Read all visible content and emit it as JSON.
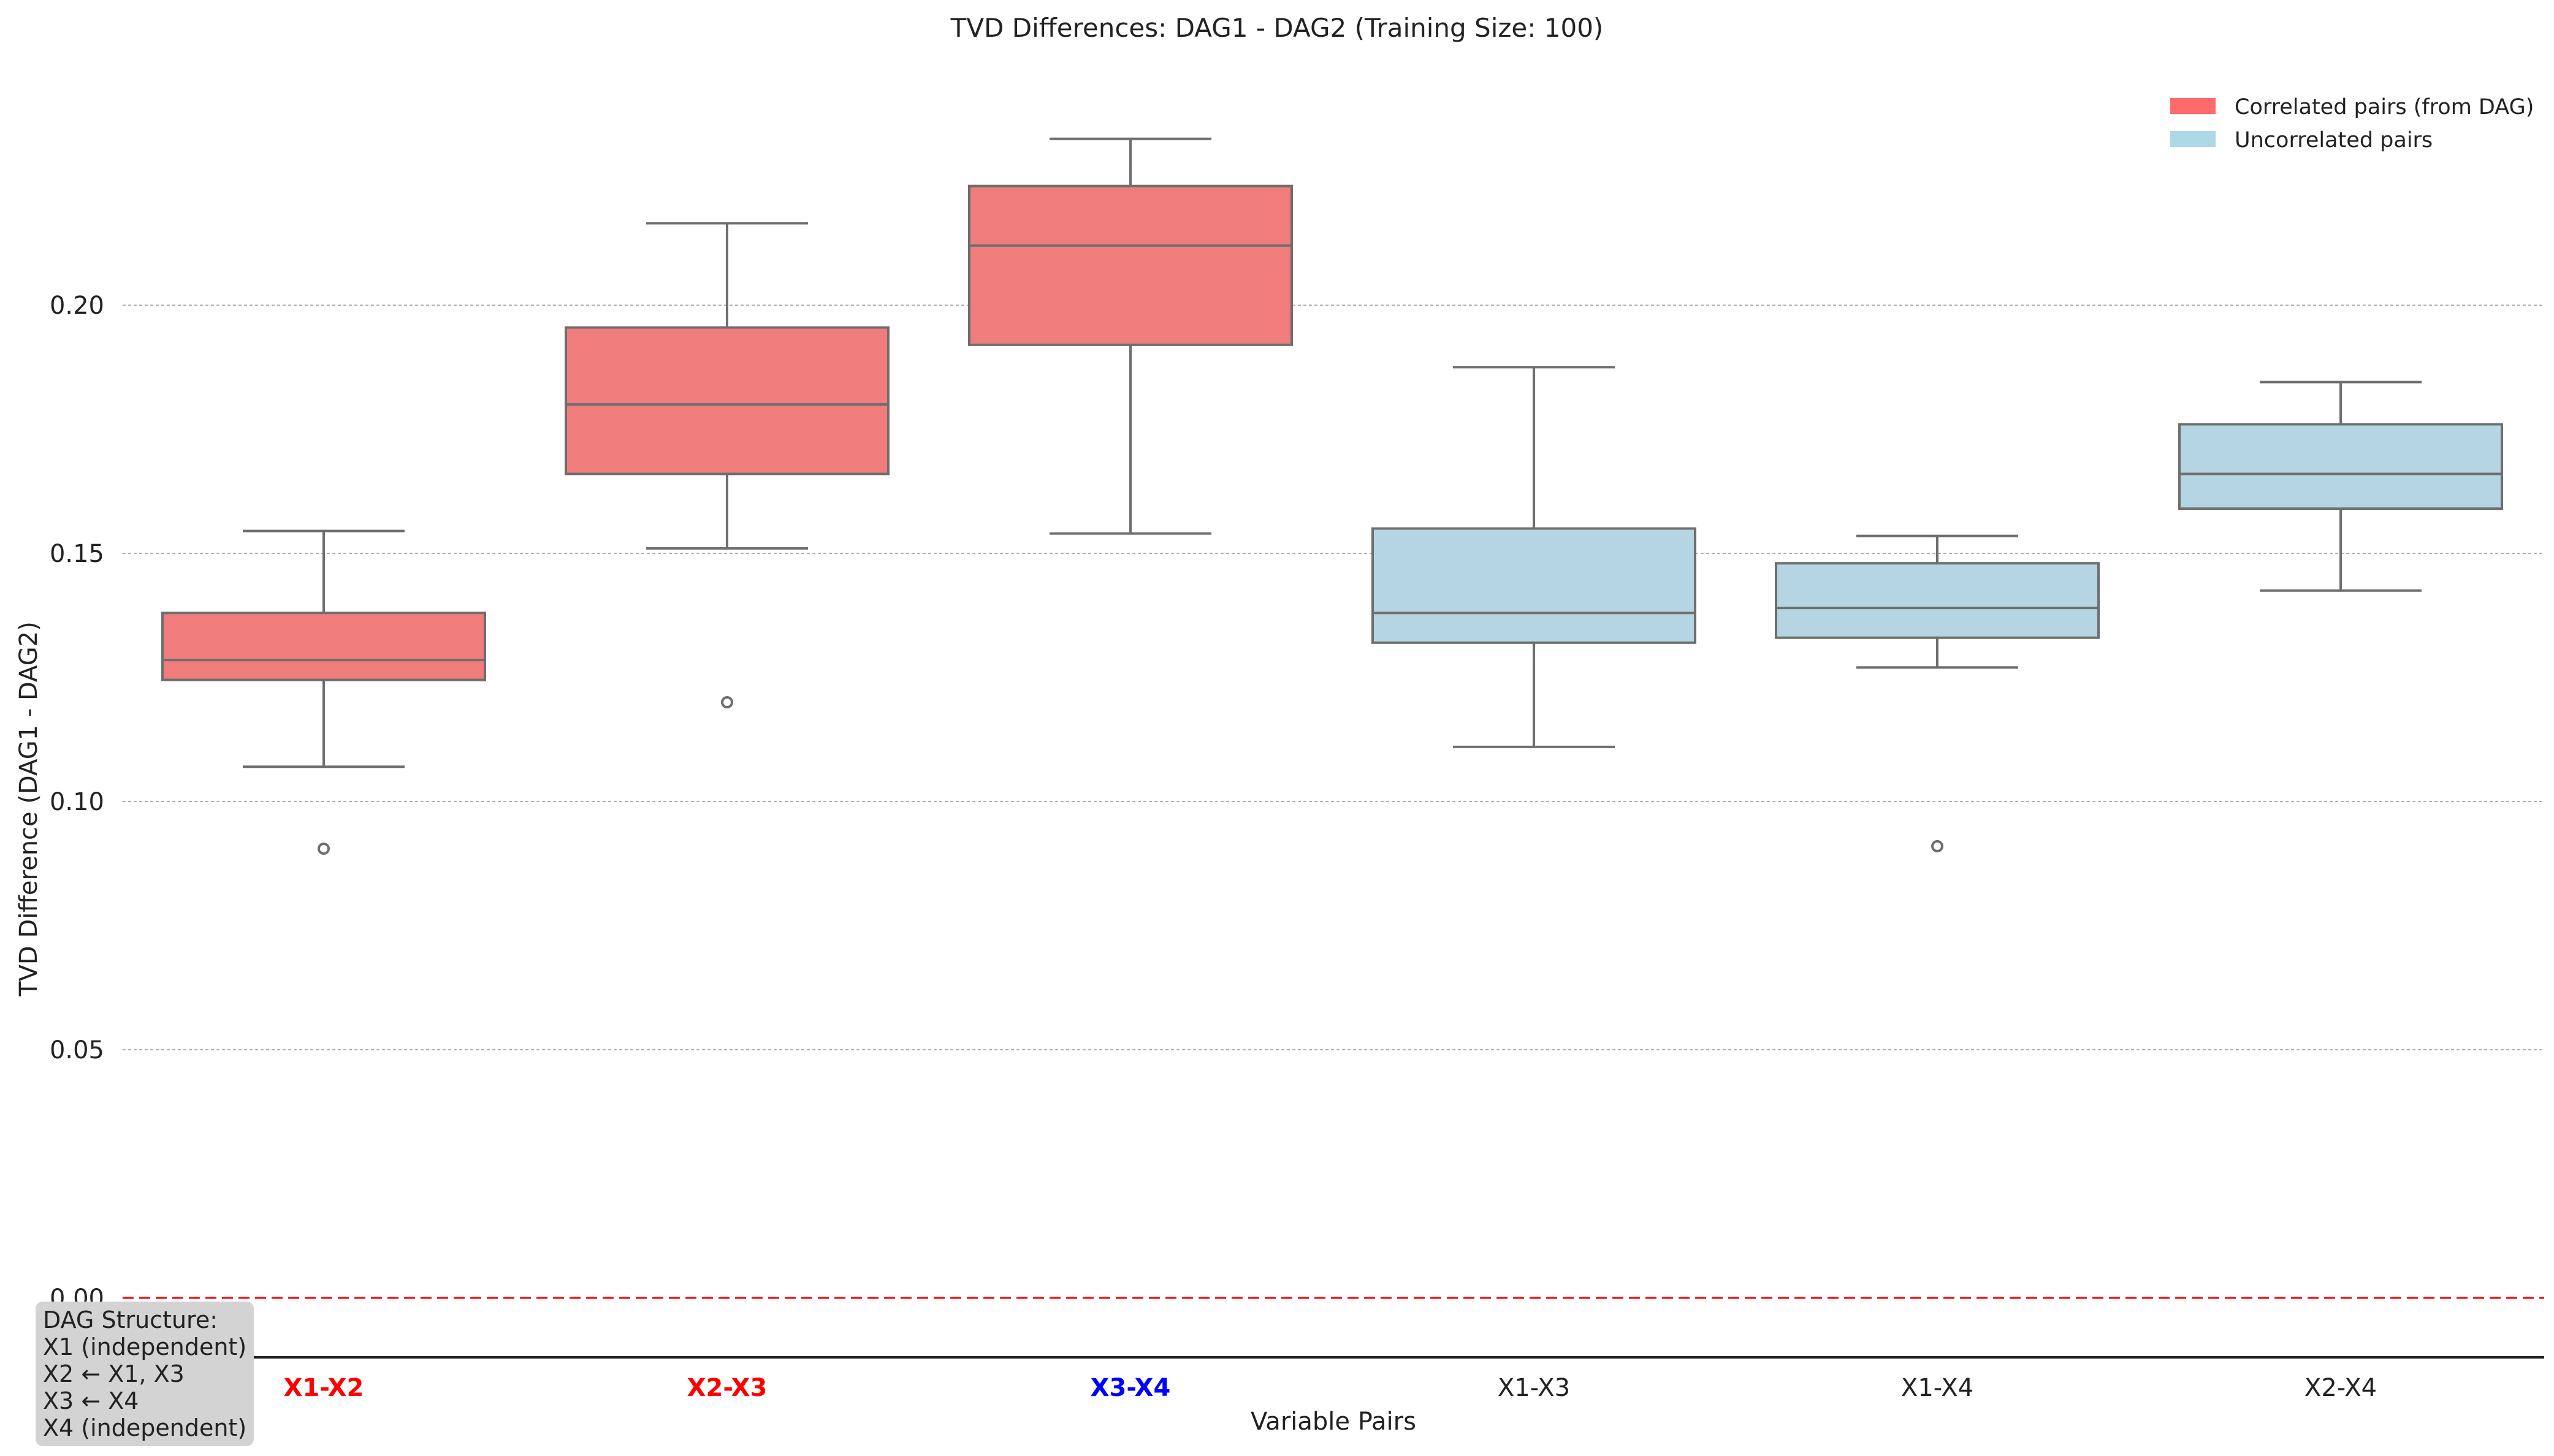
{
  "chart_data": {
    "type": "box",
    "title": "TVD Differences: DAG1 - DAG2 (Training Size: 100)",
    "xlabel": "Variable Pairs",
    "ylabel": "TVD Difference (DAG1 - DAG2)",
    "ylim": [
      0.0,
      0.245
    ],
    "yticks": [
      "0.00",
      "0.05",
      "0.10",
      "0.15",
      "0.20"
    ],
    "ytick_values": [
      0.0,
      0.05,
      0.1,
      0.15,
      0.2
    ],
    "grid": "horizontal-dashed",
    "reference_line": {
      "y": 0.0,
      "color": "#ff0000",
      "style": "dashed"
    },
    "legend": {
      "placement": "top-right",
      "entries": [
        {
          "label": "Correlated pairs (from DAG)",
          "color": "#ff6b6b"
        },
        {
          "label": "Uncorrelated pairs",
          "color": "#add8e6"
        }
      ]
    },
    "boxes": [
      {
        "category": "X1-X2",
        "group": "correlated",
        "label_color": "#ff0000",
        "label_bold": true,
        "whisker_low": 0.107,
        "q1": 0.1245,
        "median": 0.1285,
        "q3": 0.138,
        "whisker_high": 0.1545,
        "outliers": [
          0.0905
        ]
      },
      {
        "category": "X2-X3",
        "group": "correlated",
        "label_color": "#ff0000",
        "label_bold": true,
        "whisker_low": 0.151,
        "q1": 0.166,
        "median": 0.18,
        "q3": 0.1955,
        "whisker_high": 0.2165,
        "outliers": [
          0.12
        ]
      },
      {
        "category": "X3-X4",
        "group": "correlated",
        "label_color": "#0000ff",
        "label_bold": true,
        "whisker_low": 0.154,
        "q1": 0.192,
        "median": 0.212,
        "q3": 0.224,
        "whisker_high": 0.2335,
        "outliers": []
      },
      {
        "category": "X1-X3",
        "group": "uncorrelated",
        "label_color": "#222222",
        "label_bold": false,
        "whisker_low": 0.111,
        "q1": 0.132,
        "median": 0.138,
        "q3": 0.155,
        "whisker_high": 0.1875,
        "outliers": []
      },
      {
        "category": "X1-X4",
        "group": "uncorrelated",
        "label_color": "#222222",
        "label_bold": false,
        "whisker_low": 0.127,
        "q1": 0.133,
        "median": 0.139,
        "q3": 0.148,
        "whisker_high": 0.1535,
        "outliers": [
          0.091
        ]
      },
      {
        "category": "X2-X4",
        "group": "uncorrelated",
        "label_color": "#222222",
        "label_bold": false,
        "whisker_low": 0.1425,
        "q1": 0.159,
        "median": 0.166,
        "q3": 0.176,
        "whisker_high": 0.1845,
        "outliers": []
      }
    ],
    "colors": {
      "correlated_fill": "#f07c7c",
      "uncorrelated_fill": "#b4d5e1",
      "box_edge": "#6e6e6e"
    }
  },
  "annotation": {
    "title": "DAG Structure:",
    "lines": [
      "X1 (independent)",
      "X2 ← X1, X3",
      "X3 ← X4",
      "X4 (independent)"
    ]
  }
}
